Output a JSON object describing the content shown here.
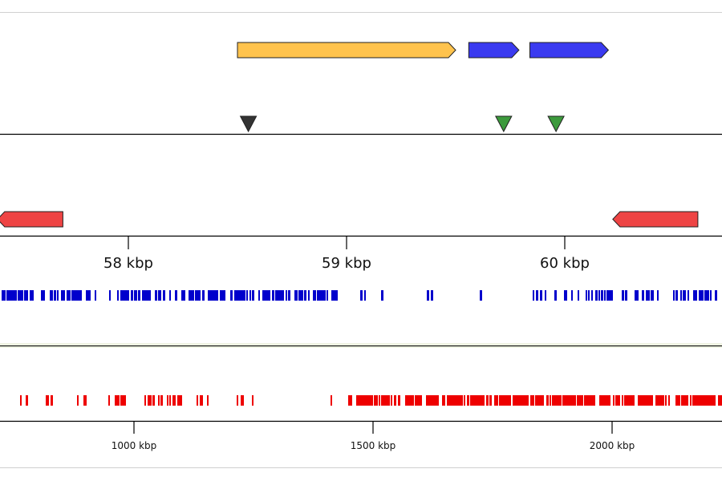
{
  "colors": {
    "background": "#ffffff",
    "frame": "#d0d0d0",
    "axis": "#000000",
    "gene_forward_yellow": "#ffc34d",
    "gene_forward_blue": "#3a3af0",
    "gene_reverse_red": "#ee4444",
    "marker_dark": "#333333",
    "marker_green": "#3c9a3c",
    "overview_blue": "#0000cc",
    "overview_red": "#ee0000",
    "separator_tint": "#e6ecd8"
  },
  "detail_view": {
    "scale_unit": "kbp",
    "scale_ticks": [
      {
        "value": 58,
        "label": "58 kbp"
      },
      {
        "value": 59,
        "label": "59 kbp"
      },
      {
        "value": 60,
        "label": "60 kbp"
      }
    ],
    "forward_genes": [
      {
        "start": 58.5,
        "end": 59.5,
        "color": "gene_forward_yellow"
      },
      {
        "start": 59.56,
        "end": 59.79,
        "color": "gene_forward_blue"
      },
      {
        "start": 59.84,
        "end": 60.2,
        "color": "gene_forward_blue"
      }
    ],
    "markers": [
      {
        "pos": 58.55,
        "color": "marker_dark"
      },
      {
        "pos": 59.72,
        "color": "marker_green"
      },
      {
        "pos": 59.96,
        "color": "marker_green"
      }
    ],
    "reverse_genes": [
      {
        "start": 57.4,
        "end": 57.7,
        "color": "gene_reverse_red"
      },
      {
        "start": 60.22,
        "end": 60.61,
        "color": "gene_reverse_red"
      }
    ]
  },
  "overview": {
    "scale_unit": "kbp",
    "scale_ticks": [
      {
        "value": 1000,
        "label": "1000 kbp"
      },
      {
        "value": 1500,
        "label": "1500 kbp"
      },
      {
        "value": 2000,
        "label": "2000 kbp"
      }
    ],
    "blue_track_color": "overview_blue",
    "red_track_color": "overview_red"
  }
}
